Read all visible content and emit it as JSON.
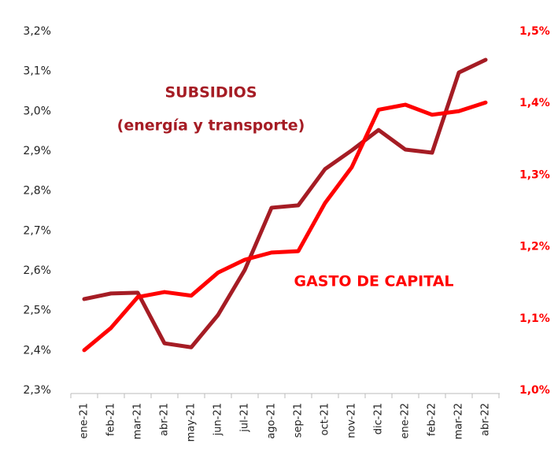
{
  "chart_data": {
    "type": "line",
    "categories": [
      "ene-21",
      "feb-21",
      "mar-21",
      "abr-21",
      "may-21",
      "jun-21",
      "jul-21",
      "ago-21",
      "sep-21",
      "oct-21",
      "nov-21",
      "dic-21",
      "ene-22",
      "feb-22",
      "mar-22",
      "abr-22"
    ],
    "series": [
      {
        "name": "SUBSIDIOS (energía y transporte)",
        "color": "#a51c24",
        "axis": "y",
        "values": [
          2.529,
          2.543,
          2.545,
          2.418,
          2.408,
          2.489,
          2.602,
          2.758,
          2.764,
          2.855,
          2.902,
          2.953,
          2.904,
          2.896,
          3.097,
          3.129
        ]
      },
      {
        "name": "GASTO DE CAPITAL",
        "color": "#ff0000",
        "axis": "y2",
        "values": [
          1.056,
          1.087,
          1.13,
          1.137,
          1.132,
          1.164,
          1.182,
          1.192,
          1.194,
          1.261,
          1.311,
          1.391,
          1.398,
          1.384,
          1.389,
          1.401
        ]
      }
    ],
    "annotations": [
      {
        "text": "SUBSIDIOS",
        "color": "#a51c24"
      },
      {
        "text": "(energía y transporte)",
        "color": "#a51c24"
      },
      {
        "text": "GASTO DE CAPITAL",
        "color": "#ff0000"
      }
    ],
    "ylim": [
      2.3,
      3.2
    ],
    "yticks": [
      {
        "value": 2.3,
        "label": "2,3%"
      },
      {
        "value": 2.4,
        "label": "2,4%"
      },
      {
        "value": 2.5,
        "label": "2,5%"
      },
      {
        "value": 2.6,
        "label": "2,6%"
      },
      {
        "value": 2.7,
        "label": "2,7%"
      },
      {
        "value": 2.8,
        "label": "2,8%"
      },
      {
        "value": 2.9,
        "label": "2,9%"
      },
      {
        "value": 3.0,
        "label": "3,0%"
      },
      {
        "value": 3.1,
        "label": "3,1%"
      },
      {
        "value": 3.2,
        "label": "3,2%"
      }
    ],
    "y2lim": [
      1.0,
      1.5
    ],
    "y2ticks": [
      {
        "value": 1.0,
        "label": "1,0%"
      },
      {
        "value": 1.1,
        "label": "1,1%"
      },
      {
        "value": 1.2,
        "label": "1,2%"
      },
      {
        "value": 1.3,
        "label": "1,3%"
      },
      {
        "value": 1.4,
        "label": "1,4%"
      },
      {
        "value": 1.5,
        "label": "1,5%"
      }
    ],
    "grid": false
  }
}
